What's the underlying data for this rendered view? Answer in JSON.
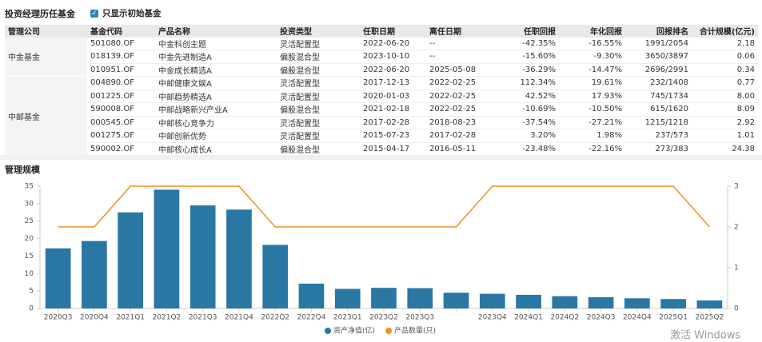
{
  "header": {
    "title": "投资经理历任基金",
    "filter_label": "只显示初始基金"
  },
  "table": {
    "columns": [
      "管理公司",
      "基金代码",
      "产品名称",
      "投资类型",
      "任职日期",
      "离任日期",
      "任职回报",
      "年化回报",
      "回报排名",
      "合计规模(亿元)"
    ],
    "groups": [
      {
        "company": "中金基金",
        "rows": [
          [
            "501080.OF",
            "中金科创主题",
            "灵活配置型",
            "2022-06-20",
            "--",
            "-42.35%",
            "-16.55%",
            "1991/2054",
            "2.18"
          ],
          [
            "018139.OF",
            "中金先进制造A",
            "偏股混合型",
            "2023-10-10",
            "--",
            "-15.60%",
            "-9.30%",
            "3650/3897",
            "0.06"
          ],
          [
            "010951.OF",
            "中金成长精选A",
            "偏股混合型",
            "2022-06-20",
            "2025-05-08",
            "-36.29%",
            "-14.47%",
            "2696/2991",
            "0.34"
          ]
        ]
      },
      {
        "company": "中邮基金",
        "rows": [
          [
            "004890.OF",
            "中邮健康文娱A",
            "灵活配置型",
            "2017-12-13",
            "2022-02-25",
            "112.34%",
            "19.61%",
            "232/1408",
            "0.77"
          ],
          [
            "001225.OF",
            "中邮趋势精选A",
            "灵活配置型",
            "2020-01-03",
            "2022-02-25",
            "42.52%",
            "17.93%",
            "745/1734",
            "8.00"
          ],
          [
            "590008.OF",
            "中邮战略新兴产业A",
            "偏股混合型",
            "2021-02-18",
            "2022-02-25",
            "-10.69%",
            "-10.50%",
            "615/1620",
            "8.09"
          ],
          [
            "000545.OF",
            "中邮核心竞争力",
            "灵活配置型",
            "2017-02-28",
            "2018-08-23",
            "-37.54%",
            "-27.21%",
            "1215/1218",
            "2.92"
          ],
          [
            "001275.OF",
            "中邮创新优势",
            "灵活配置型",
            "2015-07-23",
            "2017-02-28",
            "3.20%",
            "1.98%",
            "237/573",
            "1.01"
          ],
          [
            "590002.OF",
            "中邮核心成长A",
            "偏股混合型",
            "2015-04-17",
            "2016-05-11",
            "-23.48%",
            "-22.16%",
            "273/383",
            "24.38"
          ]
        ]
      }
    ]
  },
  "chart_data": {
    "type": "bar",
    "title": "管理规模",
    "categories": [
      "2020Q3",
      "2020Q4",
      "2021Q1",
      "2021Q2",
      "2021Q3",
      "2021Q4",
      "2022Q2",
      "2022Q4",
      "2023Q1",
      "2023Q2",
      "2023Q3",
      null,
      "2023Q4",
      "2024Q1",
      "2024Q2",
      "2024Q3",
      "2024Q4",
      "2025Q1",
      "2025Q2"
    ],
    "series": [
      {
        "name": "资产净值(亿)",
        "color": "#2a77a3",
        "type": "bar",
        "values": [
          17.2,
          19.3,
          27.5,
          34,
          29.5,
          28.3,
          18.2,
          7.1,
          5.6,
          5.9,
          5.8,
          4.5,
          4.2,
          3.9,
          3.5,
          3.2,
          2.9,
          2.7,
          2.3
        ]
      },
      {
        "name": "产品数量(只)",
        "color": "#f0901e",
        "type": "line",
        "axis": "y2",
        "values": [
          2,
          2,
          3,
          3,
          3,
          3,
          2,
          2,
          2,
          2,
          2,
          2,
          3,
          3,
          3,
          3,
          3,
          3,
          2
        ]
      }
    ],
    "ylim": [
      0,
      35
    ],
    "yticks": [
      0,
      5,
      10,
      15,
      20,
      25,
      30,
      35
    ],
    "y2lim": [
      0,
      3
    ],
    "y2ticks": [
      0,
      1,
      2,
      3
    ],
    "grid": false,
    "legend": "bottom"
  },
  "watermark": "激活 Windows"
}
